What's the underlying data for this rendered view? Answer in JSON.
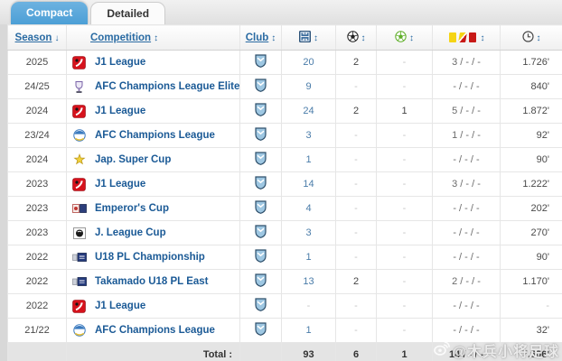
{
  "tabs": [
    {
      "label": "Compact",
      "active": true
    },
    {
      "label": "Detailed",
      "active": false
    }
  ],
  "table": {
    "headers": {
      "season": "Season",
      "competition": "Competition",
      "club": "Club",
      "sort_desc": "↓",
      "sort_both": "↕"
    },
    "rows": [
      {
        "season": "2025",
        "competition": "J1 League",
        "icon": "j1",
        "apps": "20",
        "goals": "2",
        "assists": "-",
        "cards": "3 / - / -",
        "minutes": "1.726'"
      },
      {
        "season": "24/25",
        "competition": "AFC Champions League Elite",
        "icon": "acle",
        "apps": "9",
        "goals": "-",
        "assists": "-",
        "cards": "- / - / -",
        "minutes": "840'"
      },
      {
        "season": "2024",
        "competition": "J1 League",
        "icon": "j1",
        "apps": "24",
        "goals": "2",
        "assists": "1",
        "cards": "5 / - / -",
        "minutes": "1.872'"
      },
      {
        "season": "23/24",
        "competition": "AFC Champions League",
        "icon": "acl",
        "apps": "3",
        "goals": "-",
        "assists": "-",
        "cards": "1 / - / -",
        "minutes": "92'"
      },
      {
        "season": "2024",
        "competition": "Jap. Super Cup",
        "icon": "jsc",
        "apps": "1",
        "goals": "-",
        "assists": "-",
        "cards": "- / - / -",
        "minutes": "90'"
      },
      {
        "season": "2023",
        "competition": "J1 League",
        "icon": "j1",
        "apps": "14",
        "goals": "-",
        "assists": "-",
        "cards": "3 / - / -",
        "minutes": "1.222'"
      },
      {
        "season": "2023",
        "competition": "Emperor's Cup",
        "icon": "emp",
        "apps": "4",
        "goals": "-",
        "assists": "-",
        "cards": "- / - / -",
        "minutes": "202'"
      },
      {
        "season": "2023",
        "competition": "J. League Cup",
        "icon": "jlc",
        "apps": "3",
        "goals": "-",
        "assists": "-",
        "cards": "- / - / -",
        "minutes": "270'"
      },
      {
        "season": "2022",
        "competition": "U18 PL Championship",
        "icon": "u18",
        "apps": "1",
        "goals": "-",
        "assists": "-",
        "cards": "- / - / -",
        "minutes": "90'"
      },
      {
        "season": "2022",
        "competition": "Takamado U18 PL East",
        "icon": "u18",
        "apps": "13",
        "goals": "2",
        "assists": "-",
        "cards": "2 / - / -",
        "minutes": "1.170'"
      },
      {
        "season": "2022",
        "competition": "J1 League",
        "icon": "j1",
        "apps": "-",
        "goals": "-",
        "assists": "-",
        "cards": "- / - / -",
        "minutes": "-"
      },
      {
        "season": "21/22",
        "competition": "AFC Champions League",
        "icon": "acl",
        "apps": "1",
        "goals": "-",
        "assists": "-",
        "cards": "- / - / -",
        "minutes": "32'"
      }
    ],
    "total": {
      "label": "Total :",
      "apps": "93",
      "goals": "6",
      "assists": "1",
      "cards": "14 / - / -",
      "minutes": "7.606'"
    }
  },
  "watermark": "@木兵小将足球",
  "colors": {
    "active_tab": "#55a5d9",
    "competition_link": "#1b5a96",
    "header_link": "#2a6ba3",
    "card_yellow": "#f5d415",
    "card_red": "#c81917"
  }
}
